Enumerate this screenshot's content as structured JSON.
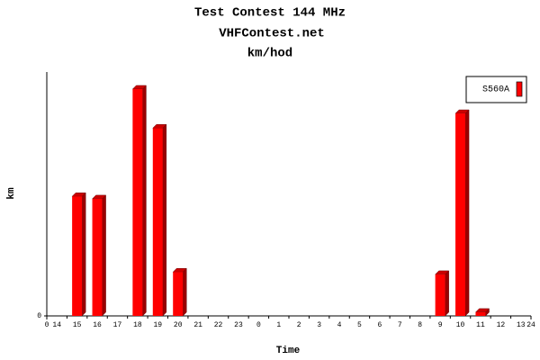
{
  "chart_data": {
    "type": "bar3d",
    "title": "Test Contest 144 MHz",
    "subtitle": "VHFContest.net",
    "unit_title": "km/hod",
    "x_label": "Time",
    "y_label": "km",
    "categories": [
      "14",
      "15",
      "16",
      "17",
      "18",
      "19",
      "20",
      "21",
      "22",
      "23",
      "0",
      "1",
      "2",
      "3",
      "4",
      "5",
      "6",
      "7",
      "8",
      "9",
      "10",
      "11",
      "12",
      "13"
    ],
    "xlim": [
      0,
      24
    ],
    "xticks": [
      0,
      24
    ],
    "ylim": [
      0,
      100
    ],
    "yticks": [
      0
    ],
    "series": [
      {
        "name": "S560A",
        "color": "#ff0000",
        "values": [
          0,
          49,
          48,
          0,
          93,
          77,
          18,
          0,
          0,
          0,
          0,
          0,
          0,
          0,
          0,
          0,
          0,
          0,
          0,
          17,
          83,
          1.5,
          0,
          0
        ]
      }
    ],
    "legend": "top-right"
  }
}
